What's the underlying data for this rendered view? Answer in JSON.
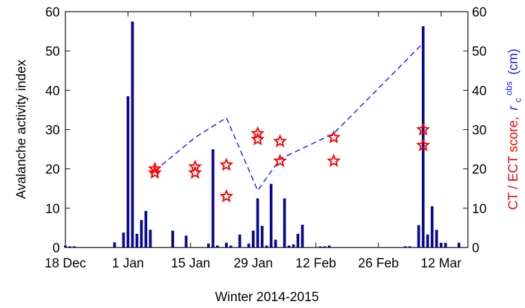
{
  "chart_data": {
    "type": "bar",
    "xlabel": "Winter 2014-2015",
    "ylabel": "Avalanche activity index",
    "y2label": [
      "CT / ECT score,",
      "r",
      "c",
      "obs",
      "(cm)"
    ],
    "xlim": [
      "12-18",
      "03-18"
    ],
    "xticks": [
      {
        "value": "12-18",
        "label": "18 Dec"
      },
      {
        "value": "01-01",
        "label": "1 Jan"
      },
      {
        "value": "01-15",
        "label": "15 Jan"
      },
      {
        "value": "01-29",
        "label": "29 Jan"
      },
      {
        "value": "02-12",
        "label": "12 Feb"
      },
      {
        "value": "02-26",
        "label": "26 Feb"
      },
      {
        "value": "03-12",
        "label": "12 Mar"
      }
    ],
    "ylim": [
      0,
      60
    ],
    "yticks": [
      0,
      10,
      20,
      30,
      40,
      50,
      60
    ],
    "y2lim": [
      0,
      60
    ],
    "y2ticks": [
      0,
      10,
      20,
      30,
      40,
      50,
      60
    ],
    "series": [
      {
        "type": "bar",
        "color": "#0a0a96",
        "x": [
          "12-18",
          "12-19",
          "12-20",
          "12-29",
          "12-31",
          "01-01",
          "01-02",
          "01-03",
          "01-04",
          "01-05",
          "01-06",
          "01-11",
          "01-14",
          "01-19",
          "01-20",
          "01-21",
          "01-23",
          "01-24",
          "01-26",
          "01-28",
          "01-29",
          "01-30",
          "01-31",
          "02-01",
          "02-02",
          "02-03",
          "02-05",
          "02-06",
          "02-07",
          "02-08",
          "02-09",
          "02-13",
          "02-14",
          "02-15",
          "03-04",
          "03-05",
          "03-07",
          "03-08",
          "03-09",
          "03-10",
          "03-11",
          "03-12",
          "03-13",
          "03-16"
        ],
        "values": [
          0.5,
          0.3,
          0.3,
          1.3,
          3.8,
          38.5,
          57.5,
          3.5,
          7,
          9.3,
          4.5,
          4.3,
          3,
          1,
          25,
          0.5,
          1.2,
          0.5,
          3.3,
          1,
          4.3,
          12.5,
          5.5,
          0.5,
          16.2,
          2,
          12.5,
          0.5,
          0.8,
          3.5,
          5.8,
          0.3,
          0.3,
          0.5,
          0.3,
          0.3,
          5.7,
          56.3,
          3.3,
          10.5,
          4.5,
          1.2,
          1.2,
          1.2
        ]
      },
      {
        "type": "line",
        "axis": "y2",
        "color": "#1a1aff",
        "x": [
          "01-07",
          "01-16",
          "01-23",
          "01-30",
          "02-04",
          "02-16",
          "03-08"
        ],
        "values": [
          19.5,
          28,
          33,
          14.5,
          22.5,
          29,
          52
        ]
      },
      {
        "type": "scatter",
        "axis": "y2",
        "color": "#ff0000",
        "x": [
          "01-07",
          "01-07",
          "01-16",
          "01-16",
          "01-23",
          "01-23",
          "01-30",
          "01-30",
          "02-04",
          "02-04",
          "02-16",
          "02-16",
          "03-08",
          "03-08"
        ],
        "values": [
          20,
          19,
          20.5,
          19,
          21,
          13,
          29,
          27.5,
          27,
          22,
          28,
          22,
          30,
          26
        ]
      }
    ]
  }
}
